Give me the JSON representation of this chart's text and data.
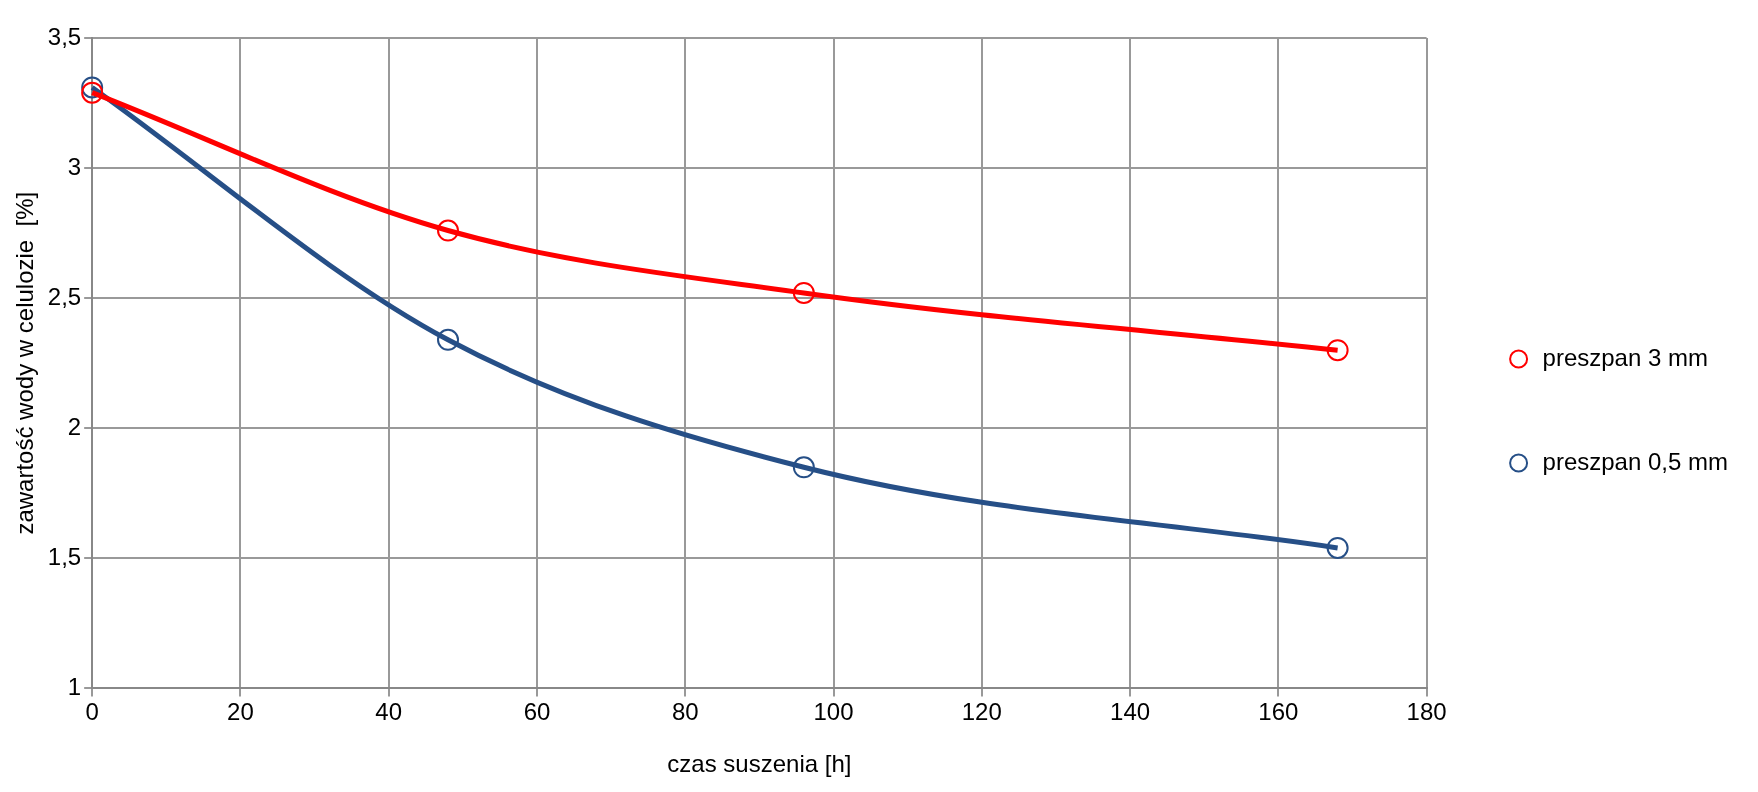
{
  "chart_data": {
    "type": "line",
    "xlabel": "czas suszenia [h]",
    "ylabel": "zawartość wody w celulozie  [%]",
    "xlim": [
      0,
      180
    ],
    "xticks": [
      0,
      20,
      40,
      60,
      80,
      100,
      120,
      140,
      160,
      180
    ],
    "ylim": [
      1,
      3.5
    ],
    "yticks": [
      1,
      {
        "value": 1.5,
        "label": "1,5"
      },
      2,
      {
        "value": 2.5,
        "label": "2,5"
      },
      3,
      {
        "value": 3.5,
        "label": "3,5"
      }
    ],
    "grid": true,
    "legend": "right",
    "marker": "circle",
    "line_style": "solid",
    "series": [
      {
        "name": "preszpan 3 mm",
        "color": "#ff0000",
        "x": [
          0,
          48,
          96,
          168
        ],
        "values": [
          3.29,
          2.76,
          2.52,
          2.3
        ]
      },
      {
        "name": "preszpan 0,5 mm",
        "color": "#264f87",
        "x": [
          0,
          48,
          96,
          168
        ],
        "values": [
          3.31,
          2.34,
          1.85,
          1.54
        ]
      }
    ]
  }
}
